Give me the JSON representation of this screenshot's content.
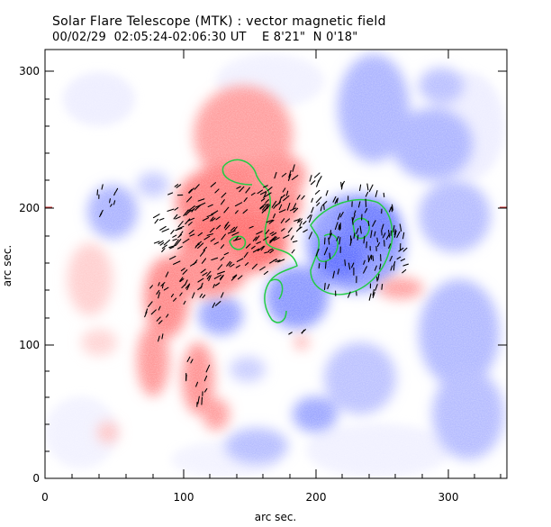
{
  "header": {
    "title": "Solar Flare Telescope (MTK) : vector magnetic field",
    "subtitle": "00/02/29  02:05:24-02:06:30 UT    E 8'21\"  N 0'18\""
  },
  "axes": {
    "xlabel": "arc sec.",
    "ylabel": "arc sec.",
    "xlim": [
      0,
      340
    ],
    "ylim": [
      0,
      315
    ],
    "xticks": [
      "0",
      "100",
      "200",
      "300"
    ],
    "yticks": [
      "0",
      "100",
      "200",
      "300"
    ]
  },
  "colors": {
    "positive_polarity": "#ff6f6f",
    "negative_polarity": "#6a78ff",
    "neutral_line": "#22cc44",
    "vectors": "#000000",
    "frame": "#000000"
  }
}
